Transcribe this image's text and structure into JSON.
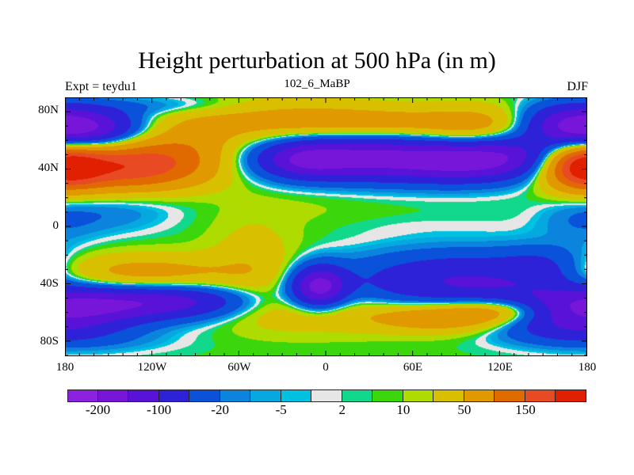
{
  "title": "Height perturbation at 500 hPa (in m)",
  "left_string": "Expt = teydu1",
  "center_string": "102_6_MaBP",
  "right_string": "DJF",
  "chart_data": {
    "type": "heatmap",
    "title": "Height perturbation at 500 hPa (in m)",
    "xlabel": "",
    "ylabel": "",
    "xlim": [
      -180,
      180
    ],
    "ylim": [
      -90,
      90
    ],
    "x_tick_labels": [
      "180",
      "120W",
      "60W",
      "0",
      "60E",
      "120E",
      "180"
    ],
    "x_tick_values": [
      -180,
      -120,
      -60,
      0,
      60,
      120,
      180
    ],
    "y_tick_labels": [
      "80N",
      "40N",
      "0",
      "40S",
      "80S"
    ],
    "y_tick_values": [
      80,
      40,
      0,
      -40,
      -80
    ],
    "colorbar": {
      "levels": [
        -200,
        -150,
        -100,
        -50,
        -20,
        -10,
        -5,
        -2,
        2,
        5,
        10,
        20,
        50,
        100,
        150,
        200
      ],
      "labels": [
        "-200",
        "-100",
        "-20",
        "-5",
        "2",
        "10",
        "50",
        "150"
      ],
      "label_levels": [
        -200,
        -100,
        -20,
        -5,
        2,
        10,
        50,
        150
      ],
      "colors": [
        "#8a22e0",
        "#7716d8",
        "#5812d8",
        "#2e22d8",
        "#0a52da",
        "#0a84dc",
        "#06a8e0",
        "#00c2e0",
        "#e6e6e6",
        "#12d88c",
        "#3cd60c",
        "#aedc00",
        "#d8c000",
        "#e09a00",
        "#e06a00",
        "#e84a24",
        "#e02000"
      ]
    }
  }
}
